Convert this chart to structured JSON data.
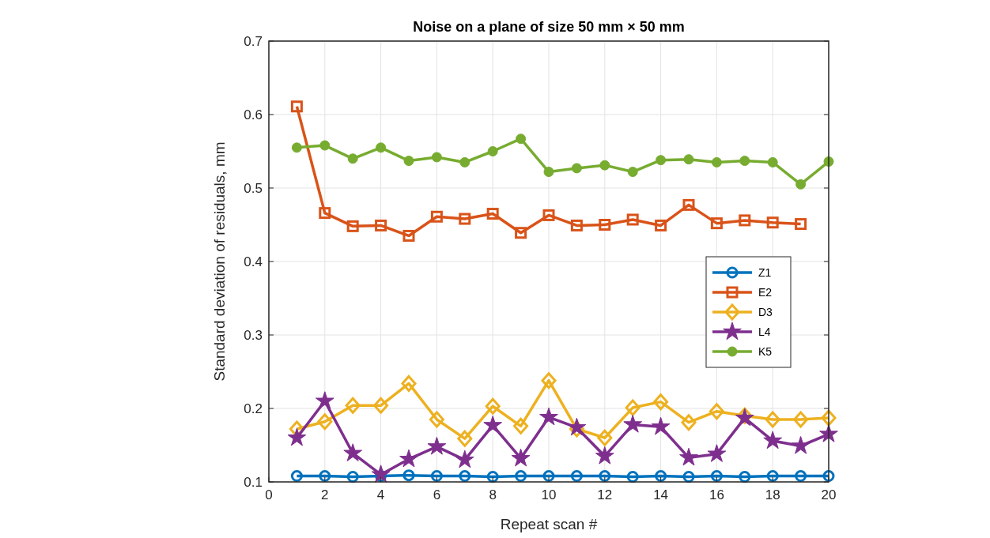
{
  "chart_data": {
    "type": "line",
    "title": "Noise on a plane of size 50 mm × 50 mm",
    "xlabel": "Repeat scan #",
    "ylabel": "Standard deviation of residuals, mm",
    "x": [
      1,
      2,
      3,
      4,
      5,
      6,
      7,
      8,
      9,
      10,
      11,
      12,
      13,
      14,
      15,
      16,
      17,
      18,
      19,
      20
    ],
    "xlim": [
      0,
      20
    ],
    "xticks": [
      0,
      2,
      4,
      6,
      8,
      10,
      12,
      14,
      16,
      18,
      20
    ],
    "ylim": [
      0.1,
      0.7
    ],
    "yticks": [
      0.1,
      0.2,
      0.3,
      0.4,
      0.5,
      0.6,
      0.7
    ],
    "grid": true,
    "legend": "right",
    "series": [
      {
        "name": "Z1",
        "color": "#0072bd",
        "marker": "circle",
        "values": [
          0.108,
          0.108,
          0.107,
          0.108,
          0.109,
          0.108,
          0.108,
          0.107,
          0.108,
          0.108,
          0.108,
          0.108,
          0.107,
          0.108,
          0.107,
          0.108,
          0.107,
          0.108,
          0.108,
          0.108
        ]
      },
      {
        "name": "E2",
        "color": "#d95319",
        "marker": "square",
        "values": [
          0.611,
          0.466,
          0.448,
          0.449,
          0.435,
          0.461,
          0.458,
          0.465,
          0.439,
          0.463,
          0.449,
          0.45,
          0.457,
          0.449,
          0.477,
          0.452,
          0.456,
          0.453,
          0.451,
          null
        ]
      },
      {
        "name": "D3",
        "color": "#edb120",
        "marker": "diamond",
        "values": [
          0.172,
          0.182,
          0.204,
          0.204,
          0.234,
          0.185,
          0.159,
          0.203,
          0.176,
          0.238,
          0.172,
          0.16,
          0.201,
          0.209,
          0.181,
          0.196,
          0.19,
          0.185,
          0.185,
          0.187
        ]
      },
      {
        "name": "L4",
        "color": "#7e2f8e",
        "marker": "star",
        "values": [
          0.16,
          0.21,
          0.139,
          0.11,
          0.131,
          0.148,
          0.13,
          0.177,
          0.132,
          0.188,
          0.174,
          0.135,
          0.178,
          0.175,
          0.133,
          0.138,
          0.187,
          0.156,
          0.149,
          0.165
        ]
      },
      {
        "name": "K5",
        "color": "#77ac30",
        "marker": "circle_filled",
        "values": [
          0.555,
          0.558,
          0.54,
          0.555,
          0.537,
          0.542,
          0.535,
          0.55,
          0.567,
          0.522,
          0.527,
          0.531,
          0.522,
          0.538,
          0.539,
          0.535,
          0.537,
          0.535,
          0.505,
          0.536
        ]
      }
    ]
  }
}
